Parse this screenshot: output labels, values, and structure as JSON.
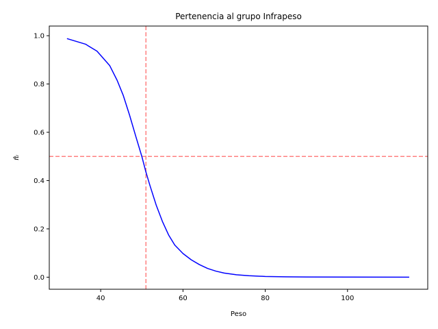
{
  "chart_data": {
    "type": "line",
    "title": "Pertenencia al grupo Infrapeso",
    "xlabel": "Peso",
    "ylabel": "π̂ᵢ",
    "xlim": [
      27.5,
      119.5
    ],
    "ylim": [
      -0.05,
      1.04
    ],
    "xticks": [
      {
        "value": 40,
        "label": "40"
      },
      {
        "value": 60,
        "label": "60"
      },
      {
        "value": 80,
        "label": "80"
      },
      {
        "value": 100,
        "label": "100"
      }
    ],
    "yticks": [
      {
        "value": 0.0,
        "label": "0.0"
      },
      {
        "value": 0.2,
        "label": "0.2"
      },
      {
        "value": 0.4,
        "label": "0.4"
      },
      {
        "value": 0.6,
        "label": "0.6"
      },
      {
        "value": 0.8,
        "label": "0.8"
      },
      {
        "value": 1.0,
        "label": "1.0"
      }
    ],
    "grid": false,
    "series": [
      {
        "color": "#0000ff",
        "x": [
          31.8,
          36.3,
          39.1,
          42.2,
          44.0,
          45.5,
          47.0,
          48.5,
          50.0,
          51.0,
          52.0,
          53.5,
          55.0,
          56.5,
          58.0,
          60.0,
          62.0,
          64.0,
          66.0,
          68.0,
          70.0,
          73.0,
          76.0,
          80.0,
          85.0,
          90.0,
          100.0,
          115.0
        ],
        "y": [
          0.988,
          0.965,
          0.936,
          0.876,
          0.815,
          0.752,
          0.672,
          0.585,
          0.5,
          0.435,
          0.378,
          0.298,
          0.231,
          0.175,
          0.133,
          0.098,
          0.072,
          0.052,
          0.036,
          0.025,
          0.017,
          0.01,
          0.006,
          0.003,
          0.0015,
          0.0008,
          0.0003,
          0.0001
        ]
      }
    ],
    "reference_lines": [
      {
        "orientation": "vertical",
        "value": 51.0,
        "color": "#ff8080",
        "style": "dashed"
      },
      {
        "orientation": "horizontal",
        "value": 0.5,
        "color": "#ff8080",
        "style": "dashed"
      }
    ]
  }
}
